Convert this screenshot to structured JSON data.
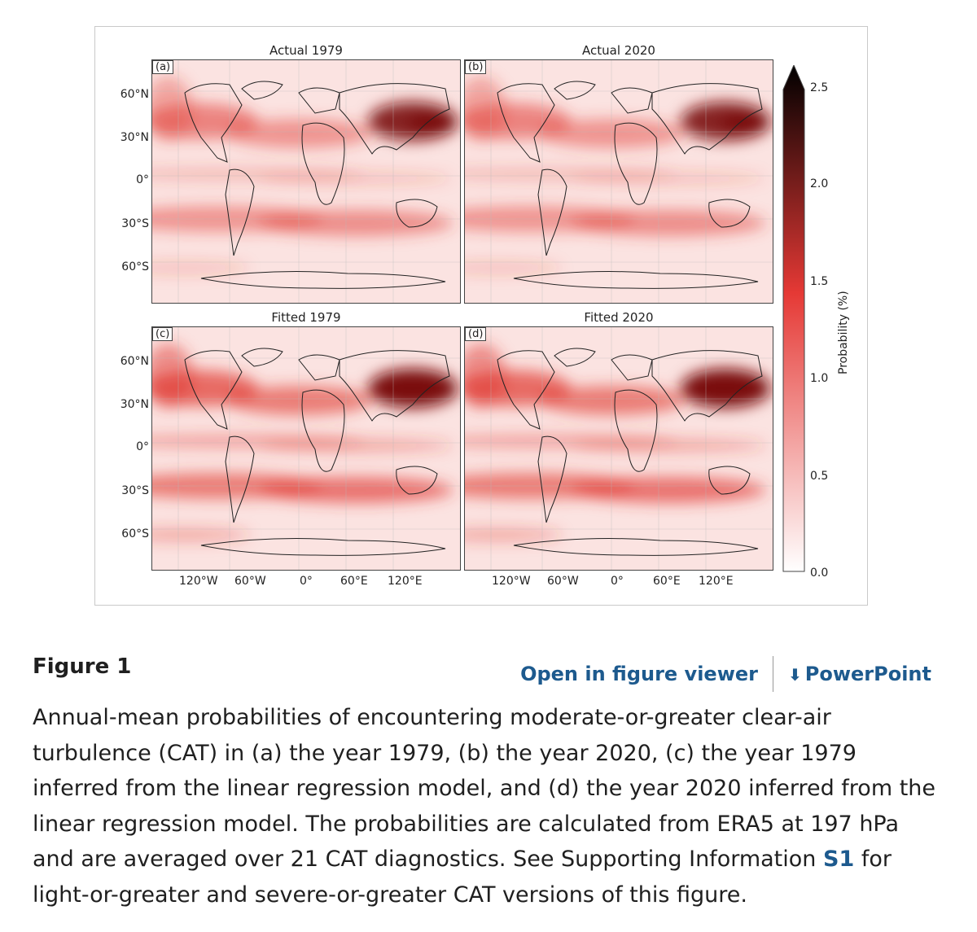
{
  "figure": {
    "panels": [
      {
        "id": "a",
        "letter": "(a)",
        "title": "Actual 1979"
      },
      {
        "id": "b",
        "letter": "(b)",
        "title": "Actual 2020"
      },
      {
        "id": "c",
        "letter": "(c)",
        "title": "Fitted 1979"
      },
      {
        "id": "d",
        "letter": "(d)",
        "title": "Fitted 2020"
      }
    ],
    "lat_labels": [
      "60°N",
      "30°N",
      "0°",
      "30°S",
      "60°S"
    ],
    "lon_labels": [
      "120°W",
      "60°W",
      "0°",
      "60°E",
      "120°E"
    ],
    "colorbar": {
      "title": "Probability (%)",
      "ticks": [
        "2.5",
        "2.0",
        "1.5",
        "1.0",
        "0.5",
        "0.0"
      ],
      "color_low": "#ffffff",
      "color_mid": "#e53935",
      "color_high": "#000000"
    }
  },
  "caption": {
    "heading": "Figure 1",
    "open_viewer": "Open in figure viewer",
    "powerpoint": "PowerPoint",
    "text_before_link": "Annual-mean probabilities of encountering moderate-or-greater clear-air turbulence (CAT) in (a) the year 1979, (b) the year 2020, (c) the year 1979 inferred from the linear regression model, and (d) the year 2020 inferred from the linear regression model. The probabilities are calculated from ERA5 at 197 hPa and are averaged over 21 CAT diagnostics. See Supporting Information ",
    "link_text": "S1",
    "text_after_link": " for light-or-greater and severe-or-greater CAT versions of this figure."
  }
}
